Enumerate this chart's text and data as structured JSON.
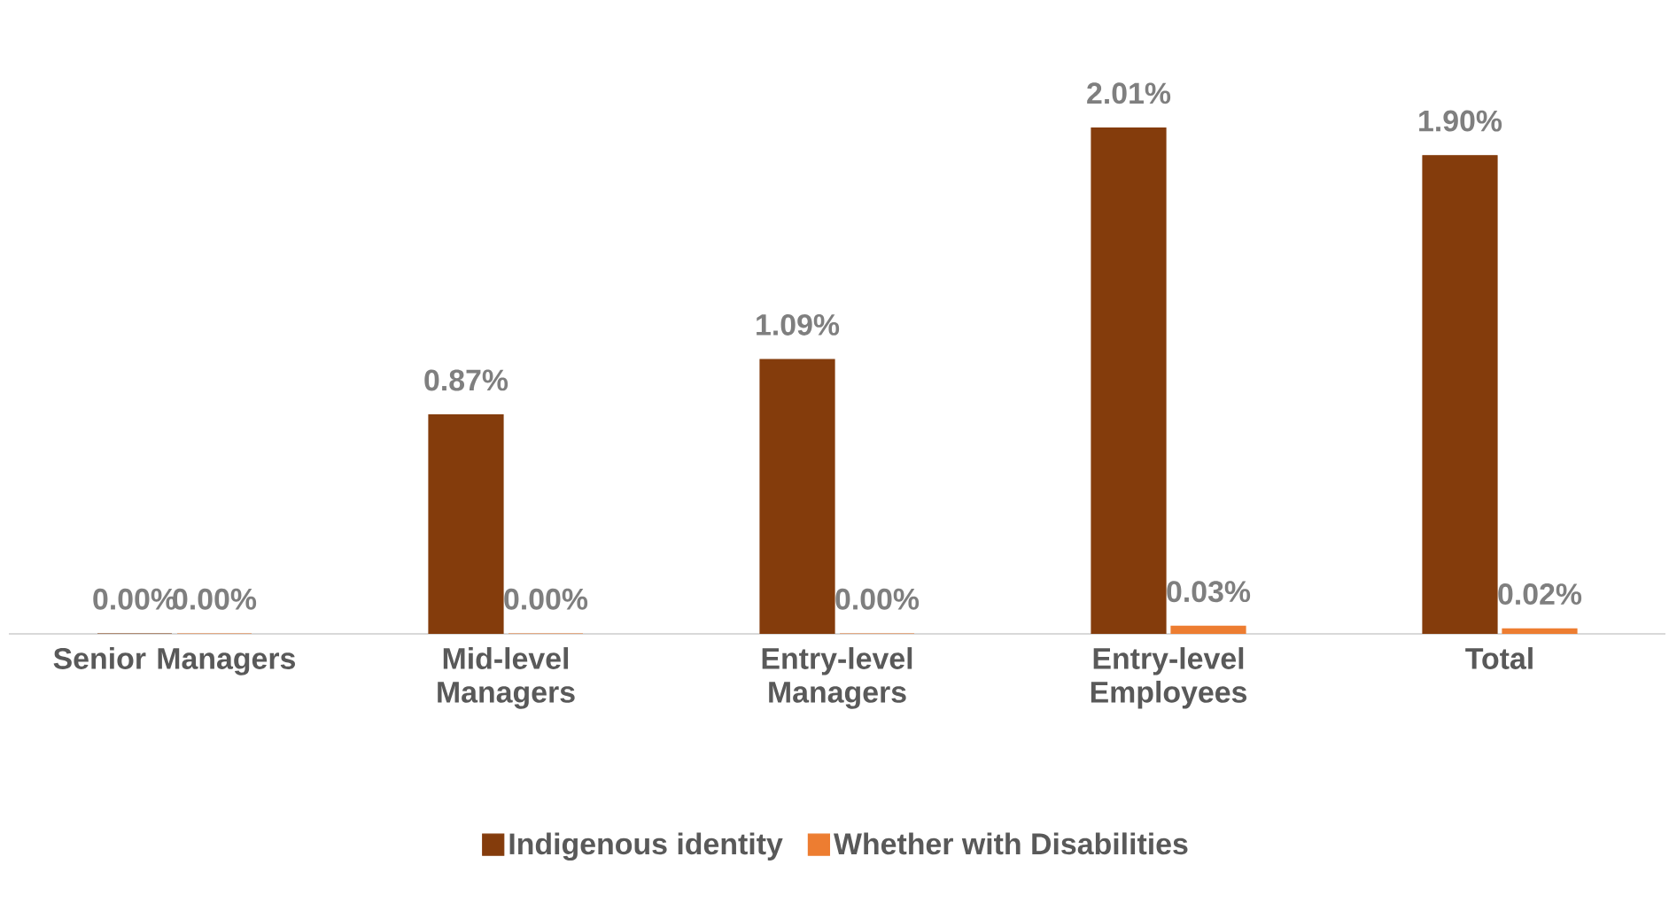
{
  "chart_data": {
    "type": "bar",
    "categories": [
      "Senior Managers",
      "Mid-level Managers",
      "Entry-level Managers",
      "Entry-level Employees",
      "Total"
    ],
    "series": [
      {
        "name": "Indigenous identity",
        "color": "#843c0c",
        "values": [
          0.0,
          0.87,
          1.09,
          2.01,
          1.9
        ],
        "value_labels": [
          "0.00%",
          "0.87%",
          "1.09%",
          "2.01%",
          "1.90%"
        ]
      },
      {
        "name": "Whether with Disabilities",
        "color": "#ed7d31",
        "values": [
          0.0,
          0.0,
          0.0,
          0.03,
          0.02
        ],
        "value_labels": [
          "0.00%",
          "0.00%",
          "0.00%",
          "0.03%",
          "0.02%"
        ]
      }
    ],
    "legend": "bottom"
  }
}
